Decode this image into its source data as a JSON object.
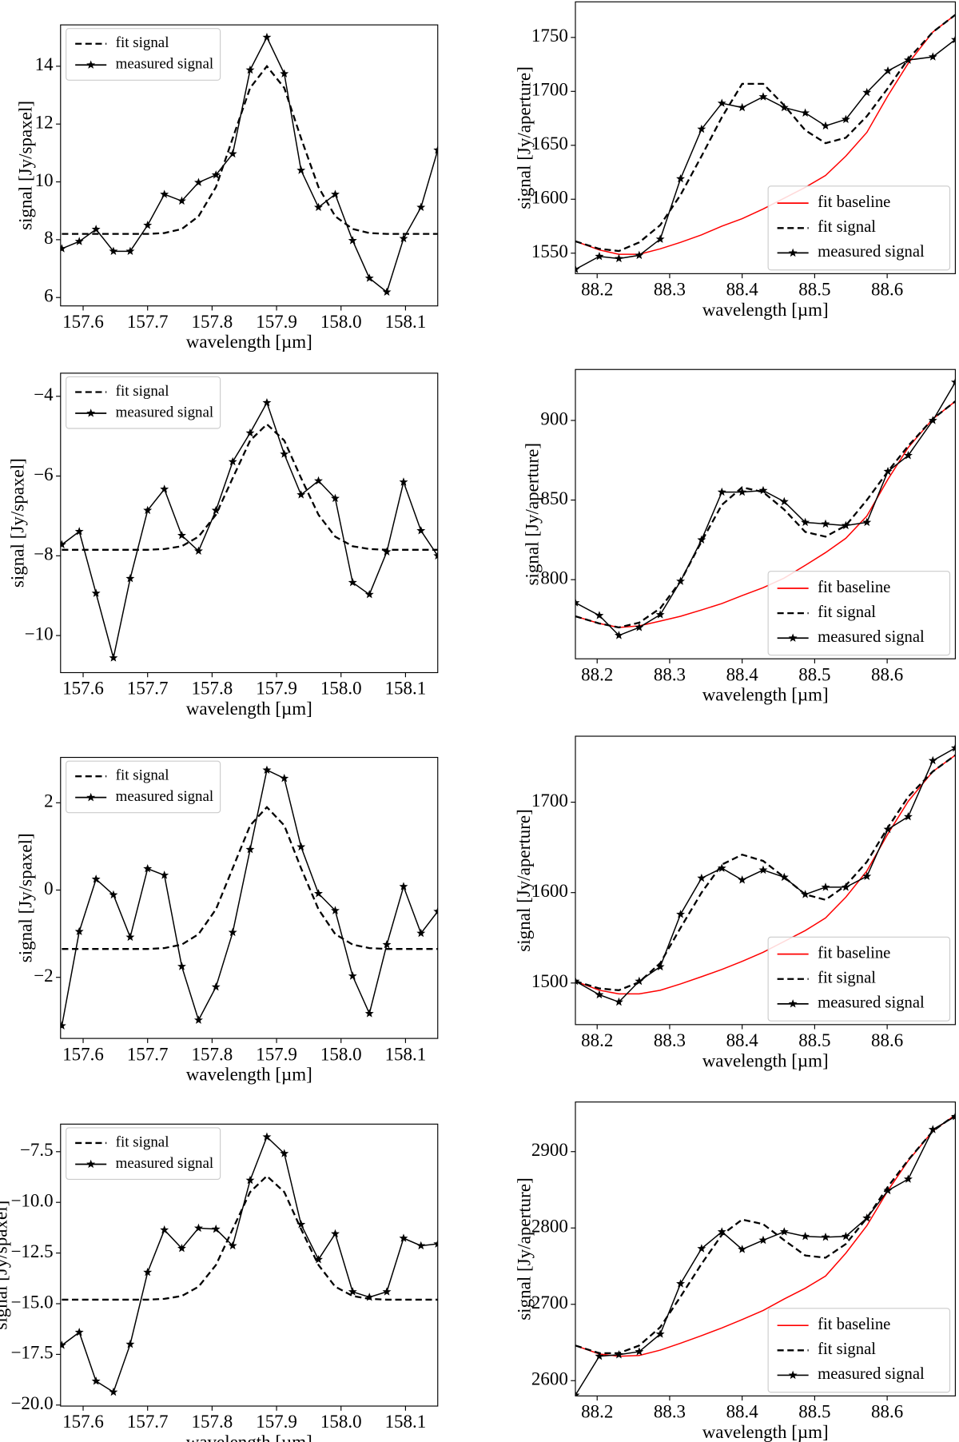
{
  "chart_data": [
    {
      "type": "line",
      "xlabel": "wavelength [µm]",
      "ylabel": "signal [Jy/spaxel]",
      "legend": "upper left",
      "x": [
        157.567,
        157.594,
        157.62,
        157.647,
        157.673,
        157.7,
        157.726,
        157.753,
        157.779,
        157.806,
        157.832,
        157.859,
        157.885,
        157.912,
        157.938,
        157.965,
        157.991,
        158.018,
        158.044,
        158.071,
        158.097,
        158.124,
        158.15
      ],
      "xlim": [
        157.565,
        158.15
      ],
      "xticks": [
        157.6,
        157.7,
        157.8,
        157.9,
        {
          "value": 158,
          "label": "158.0"
        },
        158.1
      ],
      "ylim": [
        5.71,
        15.43
      ],
      "yticks": [
        6,
        8,
        10,
        12,
        14
      ],
      "series": [
        {
          "name": "fit signal",
          "color": "#000000",
          "linestyle": "dashed",
          "values": [
            8.2,
            8.2,
            8.2,
            8.2,
            8.2,
            8.2,
            8.23,
            8.37,
            8.81,
            9.82,
            11.51,
            13.25,
            14.0,
            13.25,
            11.51,
            9.82,
            8.81,
            8.37,
            8.23,
            8.2,
            8.2,
            8.2,
            8.2
          ]
        },
        {
          "name": "measured signal",
          "color": "#000000",
          "linestyle": "solid",
          "marker": "star",
          "values": [
            7.69,
            7.94,
            8.36,
            7.6,
            7.6,
            8.5,
            9.57,
            9.34,
            9.98,
            10.24,
            10.97,
            13.87,
            15.0,
            13.74,
            10.4,
            9.12,
            9.57,
            7.97,
            6.67,
            6.19,
            8.04,
            9.12,
            11.1
          ]
        }
      ]
    },
    {
      "type": "line",
      "xlabel": "wavelength [µm]",
      "ylabel": "signal [Jy/aperture]",
      "legend": "lower right",
      "x": [
        88.17,
        88.203,
        88.23,
        88.258,
        88.287,
        88.315,
        88.344,
        88.372,
        88.4,
        88.429,
        88.458,
        88.487,
        88.515,
        88.543,
        88.572,
        88.601,
        88.629,
        88.663,
        88.694
      ],
      "xlim": [
        88.17,
        88.694
      ],
      "xticks": [
        88.2,
        88.3,
        88.4,
        88.5,
        88.6
      ],
      "ylim": [
        1531,
        1783
      ],
      "yticks": [
        1550,
        1600,
        1650,
        1700,
        1750
      ],
      "series": [
        {
          "name": "fit baseline",
          "color": "#ff0000",
          "linestyle": "solid",
          "values": [
            1561,
            1553,
            1549,
            1549,
            1554,
            1560,
            1567,
            1575,
            1582,
            1591,
            1601,
            1611,
            1622,
            1640,
            1662,
            1696,
            1726,
            1755,
            1771
          ]
        },
        {
          "name": "fit signal",
          "color": "#000000",
          "linestyle": "dashed",
          "values": [
            1561,
            1554,
            1552,
            1560,
            1576,
            1604,
            1640,
            1676,
            1707,
            1707,
            1687,
            1664,
            1652,
            1657,
            1677,
            1703,
            1730,
            1755,
            1771
          ]
        },
        {
          "name": "measured signal",
          "color": "#000000",
          "linestyle": "solid",
          "marker": "star",
          "values": [
            1535,
            1547,
            1545,
            1548,
            1563,
            1619,
            1665,
            1689,
            1685,
            1695,
            1685,
            1680,
            1668,
            1674,
            1699,
            1719,
            1729,
            1732,
            1748
          ]
        }
      ]
    },
    {
      "type": "line",
      "xlabel": "wavelength [µm]",
      "ylabel": "signal [Jy/spaxel]",
      "legend": "upper left",
      "x": [
        157.567,
        157.594,
        157.62,
        157.647,
        157.673,
        157.7,
        157.726,
        157.753,
        157.779,
        157.806,
        157.832,
        157.859,
        157.885,
        157.912,
        157.938,
        157.965,
        157.991,
        158.018,
        158.044,
        158.071,
        158.097,
        158.124,
        158.15
      ],
      "xlim": [
        157.565,
        158.15
      ],
      "xticks": [
        157.6,
        157.7,
        157.8,
        157.9,
        {
          "value": 158,
          "label": "158.0"
        },
        158.1
      ],
      "ylim": [
        -10.93,
        -3.42
      ],
      "yticks": [
        {
          "value": -10,
          "label": "−10"
        },
        {
          "value": -8,
          "label": "−8"
        },
        {
          "value": -6,
          "label": "−6"
        },
        {
          "value": -4,
          "label": "−4"
        }
      ],
      "series": [
        {
          "name": "fit signal",
          "color": "#000000",
          "linestyle": "dashed",
          "values": [
            -7.85,
            -7.85,
            -7.85,
            -7.85,
            -7.85,
            -7.85,
            -7.83,
            -7.76,
            -7.52,
            -6.97,
            -6.05,
            -5.11,
            -4.7,
            -5.11,
            -6.05,
            -6.97,
            -7.52,
            -7.76,
            -7.83,
            -7.85,
            -7.85,
            -7.85,
            -7.85
          ]
        },
        {
          "name": "measured signal",
          "color": "#000000",
          "linestyle": "solid",
          "marker": "star",
          "values": [
            -7.72,
            -7.39,
            -8.94,
            -10.56,
            -8.57,
            -6.86,
            -6.33,
            -7.49,
            -7.88,
            -6.86,
            -5.64,
            -4.92,
            -4.16,
            -5.45,
            -6.47,
            -6.12,
            -6.56,
            -8.67,
            -8.97,
            -7.9,
            -6.15,
            -7.37,
            -8.0
          ]
        }
      ]
    },
    {
      "type": "line",
      "xlabel": "wavelength [µm]",
      "ylabel": "signal [Jy/aperture]",
      "legend": "lower right",
      "x": [
        88.17,
        88.203,
        88.23,
        88.258,
        88.287,
        88.315,
        88.344,
        88.372,
        88.4,
        88.429,
        88.458,
        88.487,
        88.515,
        88.543,
        88.572,
        88.601,
        88.629,
        88.663,
        88.694
      ],
      "xlim": [
        88.17,
        88.694
      ],
      "xticks": [
        88.2,
        88.3,
        88.4,
        88.5,
        88.6
      ],
      "ylim": [
        750.3,
        932
      ],
      "yticks": [
        800,
        850,
        900
      ],
      "series": [
        {
          "name": "fit baseline",
          "color": "#ff0000",
          "linestyle": "solid",
          "values": [
            777,
            772.5,
            770,
            771,
            774,
            777,
            781,
            785,
            790,
            795,
            801,
            809,
            817,
            826,
            840,
            863,
            883,
            901,
            912
          ]
        },
        {
          "name": "fit signal",
          "color": "#000000",
          "linestyle": "dashed",
          "values": [
            777,
            772.5,
            770,
            773,
            782,
            799,
            824,
            847,
            858,
            855,
            844,
            830,
            827,
            834,
            850,
            868,
            884,
            901,
            912
          ]
        },
        {
          "name": "measured signal",
          "color": "#000000",
          "linestyle": "solid",
          "marker": "star",
          "values": [
            785.5,
            777.5,
            765,
            770,
            778,
            799,
            825,
            855,
            855,
            856,
            849,
            836,
            835,
            834,
            836,
            868,
            878,
            900,
            924
          ]
        }
      ]
    },
    {
      "type": "line",
      "xlabel": "wavelength [µm]",
      "ylabel": "signal [Jy/spaxel]",
      "legend": "upper left",
      "x": [
        157.567,
        157.594,
        157.62,
        157.647,
        157.673,
        157.7,
        157.726,
        157.753,
        157.779,
        157.806,
        157.832,
        157.859,
        157.885,
        157.912,
        157.938,
        157.965,
        157.991,
        158.018,
        158.044,
        158.071,
        158.097,
        158.124,
        158.15
      ],
      "xlim": [
        157.565,
        158.15
      ],
      "xticks": [
        157.6,
        157.7,
        157.8,
        157.9,
        {
          "value": 158,
          "label": "158.0"
        },
        158.1
      ],
      "ylim": [
        -3.4,
        3.04
      ],
      "yticks": [
        {
          "value": -2,
          "label": "−2"
        },
        0,
        2
      ],
      "series": [
        {
          "name": "fit signal",
          "color": "#000000",
          "linestyle": "dashed",
          "values": [
            -1.35,
            -1.35,
            -1.35,
            -1.35,
            -1.35,
            -1.35,
            -1.33,
            -1.25,
            -1.01,
            -0.44,
            0.5,
            1.48,
            1.9,
            1.48,
            0.5,
            -0.44,
            -1.01,
            -1.25,
            -1.33,
            -1.35,
            -1.35,
            -1.35,
            -1.35
          ]
        },
        {
          "name": "measured signal",
          "color": "#000000",
          "linestyle": "solid",
          "marker": "star",
          "values": [
            -3.11,
            -0.95,
            0.25,
            -0.11,
            -1.08,
            0.49,
            0.34,
            -1.75,
            -2.98,
            -2.22,
            -0.97,
            0.93,
            2.75,
            2.56,
            0.99,
            -0.08,
            -0.47,
            -1.97,
            -2.83,
            -1.25,
            0.08,
            -0.99,
            -0.49
          ]
        }
      ]
    },
    {
      "type": "line",
      "xlabel": "wavelength [µm]",
      "ylabel": "signal [Jy/aperture]",
      "legend": "lower right",
      "x": [
        88.17,
        88.203,
        88.23,
        88.258,
        88.287,
        88.315,
        88.344,
        88.372,
        88.4,
        88.429,
        88.458,
        88.487,
        88.515,
        88.543,
        88.572,
        88.601,
        88.629,
        88.663,
        88.694
      ],
      "xlim": [
        88.17,
        88.694
      ],
      "xticks": [
        88.2,
        88.3,
        88.4,
        88.5,
        88.6
      ],
      "ylim": [
        1454,
        1773
      ],
      "yticks": [
        1500,
        1600,
        1700
      ],
      "series": [
        {
          "name": "fit baseline",
          "color": "#ff0000",
          "linestyle": "solid",
          "values": [
            1502,
            1492,
            1488,
            1488,
            1492,
            1499,
            1507,
            1515,
            1524,
            1534,
            1546,
            1558,
            1572,
            1595,
            1624,
            1665,
            1701,
            1734,
            1752
          ]
        },
        {
          "name": "fit signal",
          "color": "#000000",
          "linestyle": "dashed",
          "values": [
            1502,
            1494,
            1492,
            1501,
            1522,
            1561,
            1600,
            1631,
            1642,
            1635,
            1617,
            1598,
            1592,
            1608,
            1634,
            1672,
            1706,
            1734,
            1752
          ]
        },
        {
          "name": "measured signal",
          "color": "#000000",
          "linestyle": "solid",
          "marker": "star",
          "values": [
            1502,
            1487,
            1479,
            1502,
            1518,
            1576,
            1616,
            1627,
            1614,
            1625,
            1617,
            1598,
            1606,
            1606,
            1618,
            1670,
            1684,
            1746,
            1760
          ]
        }
      ]
    },
    {
      "type": "line",
      "xlabel": "wavelength [µm]",
      "ylabel": "signal [Jy/spaxel]",
      "legend": "upper left",
      "x": [
        157.567,
        157.594,
        157.62,
        157.647,
        157.673,
        157.7,
        157.726,
        157.753,
        157.779,
        157.806,
        157.832,
        157.859,
        157.885,
        157.912,
        157.938,
        157.965,
        157.991,
        158.018,
        158.044,
        158.071,
        158.097,
        158.124,
        158.15
      ],
      "xlim": [
        157.565,
        158.15
      ],
      "xticks": [
        157.6,
        157.7,
        157.8,
        157.9,
        {
          "value": 158,
          "label": "158.0"
        },
        158.1
      ],
      "ylim": [
        -20.05,
        -6.14
      ],
      "yticks": [
        {
          "value": -20,
          "label": "−20.0"
        },
        {
          "value": -17.5,
          "label": "−17.5"
        },
        {
          "value": -15,
          "label": "−15.0"
        },
        {
          "value": -12.5,
          "label": "−12.5"
        },
        {
          "value": -10,
          "label": "−10.0"
        },
        {
          "value": -7.5,
          "label": "−7.5"
        }
      ],
      "series": [
        {
          "name": "fit signal",
          "color": "#000000",
          "linestyle": "dashed",
          "values": [
            -14.8,
            -14.8,
            -14.8,
            -14.8,
            -14.8,
            -14.8,
            -14.76,
            -14.62,
            -14.16,
            -13.09,
            -11.32,
            -9.49,
            -8.7,
            -9.49,
            -11.32,
            -13.09,
            -14.16,
            -14.62,
            -14.76,
            -14.8,
            -14.8,
            -14.8,
            -14.8
          ]
        },
        {
          "name": "measured signal",
          "color": "#000000",
          "linestyle": "solid",
          "marker": "star",
          "values": [
            -17.05,
            -16.41,
            -18.82,
            -19.36,
            -17.0,
            -13.45,
            -11.36,
            -12.27,
            -11.27,
            -11.32,
            -12.14,
            -8.91,
            -6.77,
            -7.59,
            -11.09,
            -12.82,
            -11.55,
            -14.41,
            -14.68,
            -14.41,
            -11.77,
            -12.14,
            -12.05
          ]
        }
      ]
    },
    {
      "type": "line",
      "xlabel": "wavelength [µm]",
      "ylabel": "signal [Jy/aperture]",
      "legend": "lower right",
      "x": [
        88.17,
        88.203,
        88.23,
        88.258,
        88.287,
        88.315,
        88.344,
        88.372,
        88.4,
        88.429,
        88.458,
        88.487,
        88.515,
        88.543,
        88.572,
        88.601,
        88.629,
        88.663,
        88.694
      ],
      "xlim": [
        88.17,
        88.694
      ],
      "xticks": [
        88.2,
        88.3,
        88.4,
        88.5,
        88.6
      ],
      "ylim": [
        2580,
        2965
      ],
      "yticks": [
        2600,
        2700,
        2800,
        2900
      ],
      "series": [
        {
          "name": "fit baseline",
          "color": "#ff0000",
          "linestyle": "solid",
          "values": [
            2646,
            2635,
            2632,
            2633,
            2640,
            2649,
            2659,
            2669,
            2680,
            2692,
            2707,
            2721,
            2737,
            2767,
            2803,
            2849,
            2888,
            2927,
            2948
          ]
        },
        {
          "name": "fit signal",
          "color": "#000000",
          "linestyle": "dashed",
          "values": [
            2646,
            2636,
            2636,
            2646,
            2670,
            2710,
            2753,
            2791,
            2811,
            2805,
            2784,
            2764,
            2761,
            2779,
            2813,
            2854,
            2889,
            2927,
            2948
          ]
        },
        {
          "name": "measured signal",
          "color": "#000000",
          "linestyle": "solid",
          "marker": "star",
          "values": [
            2581,
            2632,
            2634,
            2638,
            2661,
            2727,
            2773,
            2795,
            2772,
            2784,
            2795,
            2789,
            2788,
            2789,
            2813,
            2849,
            2864,
            2929,
            2946
          ]
        }
      ]
    }
  ]
}
